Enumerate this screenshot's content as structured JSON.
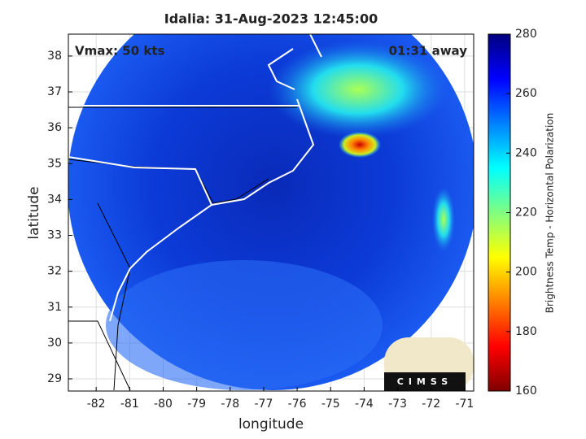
{
  "chart_data": {
    "type": "map",
    "title": "Idalia: 31-Aug-2023 12:45:00",
    "annotations": [
      "Vmax: 50 kts",
      "01:31 away"
    ],
    "xlabel": "longitude",
    "ylabel": "latitude",
    "xlim": [
      -82.83,
      -70.73
    ],
    "xticks": [
      -82,
      -81,
      -80,
      -79,
      -78,
      -77,
      -76,
      -75,
      -74,
      -73,
      -72,
      -71
    ],
    "ylim": [
      28.66,
      38.61
    ],
    "yticks": [
      29,
      30,
      31,
      32,
      33,
      34,
      35,
      36,
      37,
      38
    ],
    "grid": true,
    "colorbar": {
      "label": "Brightness Temp - Horizontal Polarization",
      "clim": [
        160,
        280
      ],
      "ticks": [
        160,
        180,
        200,
        220,
        240,
        260,
        280
      ]
    },
    "logo": "CIMSS"
  }
}
